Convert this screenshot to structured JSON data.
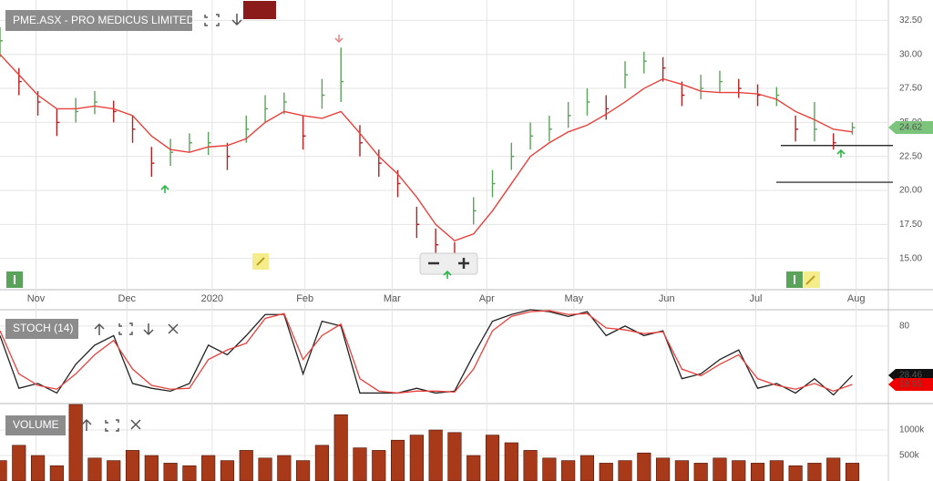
{
  "chart_data": [
    {
      "type": "ohlc",
      "title": "PME.ASX - PRO MEDICUS LIMITED",
      "categories": [
        null,
        null,
        null,
        null,
        null,
        null,
        null,
        null,
        null,
        null,
        null,
        null,
        null,
        null,
        null,
        null,
        null,
        null,
        null,
        null,
        null,
        null,
        null,
        null,
        null,
        null,
        null,
        null,
        null,
        null,
        null,
        null,
        null,
        null,
        null,
        null,
        null,
        null,
        null,
        null,
        null,
        null,
        null,
        null,
        null,
        null
      ],
      "close": [
        31.0,
        28.0,
        26.5,
        25.0,
        25.8,
        26.5,
        25.8,
        24.5,
        22.0,
        22.8,
        23.5,
        23.5,
        22.5,
        24.5,
        26.0,
        26.5,
        24.0,
        27.0,
        28.0,
        23.5,
        22.0,
        20.5,
        17.5,
        16.0,
        15.0,
        18.5,
        20.5,
        22.5,
        24.0,
        24.5,
        25.5,
        26.5,
        26.0,
        28.5,
        29.5,
        29.0,
        27.0,
        27.5,
        28.0,
        27.5,
        27.0,
        27.0,
        24.5,
        24.5,
        23.5,
        24.62
      ],
      "high": [
        32.0,
        29.0,
        27.3,
        26.0,
        26.8,
        27.3,
        26.6,
        25.5,
        23.2,
        23.8,
        24.2,
        24.3,
        23.5,
        25.5,
        27.0,
        27.2,
        25.5,
        28.2,
        30.5,
        24.8,
        23.0,
        21.5,
        18.8,
        17.2,
        16.2,
        19.5,
        21.5,
        23.5,
        25.0,
        25.5,
        26.5,
        27.5,
        27.0,
        29.5,
        30.2,
        29.8,
        28.0,
        28.5,
        28.8,
        28.2,
        27.8,
        27.6,
        25.5,
        26.5,
        24.2,
        25.0
      ],
      "low": [
        29.8,
        27.0,
        25.5,
        24.0,
        25.0,
        25.6,
        25.0,
        23.5,
        21.0,
        21.8,
        22.8,
        22.6,
        21.5,
        23.5,
        25.0,
        25.6,
        23.0,
        26.0,
        26.5,
        22.5,
        21.0,
        19.5,
        16.5,
        14.8,
        14.2,
        17.5,
        19.5,
        21.5,
        23.0,
        23.6,
        24.6,
        25.5,
        25.2,
        27.5,
        28.6,
        28.0,
        26.2,
        26.7,
        27.2,
        26.8,
        26.2,
        26.2,
        23.6,
        23.6,
        23.0,
        24.1
      ],
      "up_color": "#5aa35a",
      "down_color": "#b22222",
      "ma": {
        "color": "#e8413c",
        "values": [
          30.0,
          28.5,
          27.0,
          26.0,
          26.0,
          26.2,
          26.0,
          25.5,
          24.0,
          23.0,
          22.8,
          23.2,
          23.3,
          23.8,
          25.0,
          25.8,
          25.5,
          25.3,
          25.8,
          24.2,
          22.5,
          21.2,
          19.5,
          17.5,
          16.3,
          16.8,
          18.5,
          20.5,
          22.5,
          23.5,
          24.3,
          24.8,
          25.6,
          26.5,
          27.5,
          28.2,
          27.8,
          27.3,
          27.2,
          27.2,
          27.1,
          26.7,
          25.8,
          25.2,
          24.5,
          24.3
        ]
      },
      "horizontal_lines": [
        23.3,
        20.6
      ],
      "xlim": [
        0,
        46.9
      ],
      "xticks": [
        {
          "value": 1.9,
          "label": "Nov"
        },
        {
          "value": 6.7,
          "label": "Dec"
        },
        {
          "value": 11.2,
          "label": "2020"
        },
        {
          "value": 16.1,
          "label": "Feb"
        },
        {
          "value": 20.7,
          "label": "Mar"
        },
        {
          "value": 25.7,
          "label": "Apr"
        },
        {
          "value": 30.3,
          "label": "May"
        },
        {
          "value": 35.2,
          "label": "Jun"
        },
        {
          "value": 39.9,
          "label": "Jul"
        },
        {
          "value": 45.2,
          "label": "Aug"
        }
      ],
      "ylim": [
        12.7,
        34.0
      ],
      "yticks": [
        {
          "value": 15,
          "label": "15.00"
        },
        {
          "value": 17.5,
          "label": "17.50"
        },
        {
          "value": 20,
          "label": "20.00"
        },
        {
          "value": 22.5,
          "label": "22.50"
        },
        {
          "value": 25,
          "label": "25.00"
        },
        {
          "value": 27.5,
          "label": "27.50"
        },
        {
          "value": 30,
          "label": "30.00"
        },
        {
          "value": 32.5,
          "label": "32.50"
        }
      ],
      "grid": true
    },
    {
      "type": "line",
      "title": "STOCH (14)",
      "series": [
        {
          "color": "#222222",
          "values": [
            70,
            15,
            20,
            10,
            40,
            60,
            70,
            20,
            15,
            12,
            20,
            60,
            50,
            70,
            92,
            92,
            30,
            85,
            80,
            10,
            10,
            10,
            15,
            10,
            12,
            50,
            85,
            92,
            97,
            95,
            90,
            95,
            70,
            80,
            70,
            75,
            25,
            30,
            45,
            55,
            15,
            20,
            10,
            25,
            8,
            28.46
          ]
        },
        {
          "color": "#e8413c",
          "values": [
            75,
            30,
            18,
            14,
            30,
            50,
            65,
            35,
            18,
            14,
            15,
            45,
            55,
            62,
            88,
            93,
            45,
            70,
            82,
            25,
            12,
            10,
            12,
            12,
            11,
            35,
            75,
            90,
            95,
            96,
            92,
            93,
            78,
            76,
            72,
            74,
            35,
            28,
            40,
            50,
            25,
            18,
            14,
            20,
            12,
            18.95
          ]
        }
      ],
      "ylim": [
        -1,
        97
      ],
      "yticks": [
        80
      ]
    },
    {
      "type": "bar",
      "title": "VOLUME",
      "color": "#a83a1a",
      "values": [
        400000,
        700000,
        500000,
        300000,
        1500000,
        450000,
        400000,
        600000,
        500000,
        350000,
        300000,
        500000,
        400000,
        600000,
        450000,
        500000,
        400000,
        700000,
        1300000,
        650000,
        600000,
        800000,
        900000,
        1000000,
        950000,
        500000,
        900000,
        750000,
        600000,
        450000,
        400000,
        500000,
        350000,
        400000,
        550000,
        450000,
        400000,
        350000,
        450000,
        400000,
        350000,
        400000,
        300000,
        350000,
        450000,
        350000
      ],
      "ylim": [
        0,
        1518000
      ],
      "yticks": [
        {
          "value": 500000,
          "label": "500k"
        },
        {
          "value": 1000000,
          "label": "1000k"
        }
      ]
    }
  ]
}
